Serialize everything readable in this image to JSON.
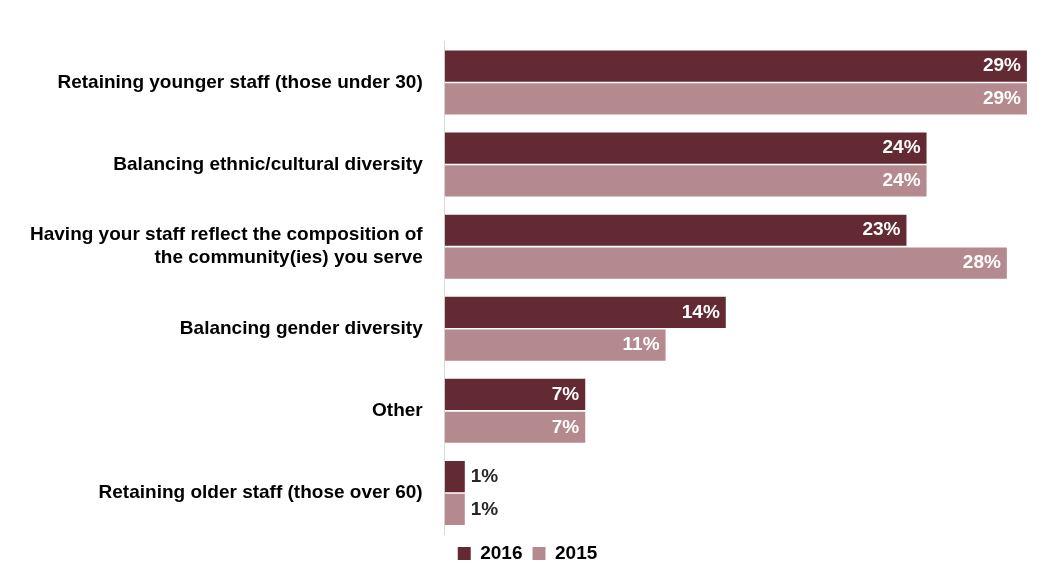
{
  "chart_data": {
    "type": "bar",
    "orientation": "horizontal",
    "categories": [
      "Retaining younger staff (those under 30)",
      "Balancing ethnic/cultural diversity",
      "Having your staff reflect the composition of the community(ies) you serve",
      "Balancing gender diversity",
      "Other",
      "Retaining older staff (those over 60)"
    ],
    "series": [
      {
        "name": "2016",
        "color": "#632a33",
        "values": [
          29,
          24,
          23,
          14,
          7,
          1
        ],
        "value_labels": [
          "29%",
          "24%",
          "23%",
          "14%",
          "7%",
          "1%"
        ]
      },
      {
        "name": "2015",
        "color": "#b58a8e",
        "values": [
          29,
          24,
          28,
          11,
          7,
          1
        ],
        "value_labels": [
          "29%",
          "24%",
          "28%",
          "11%",
          "7%",
          "1%"
        ]
      }
    ],
    "legend": "bottom"
  }
}
